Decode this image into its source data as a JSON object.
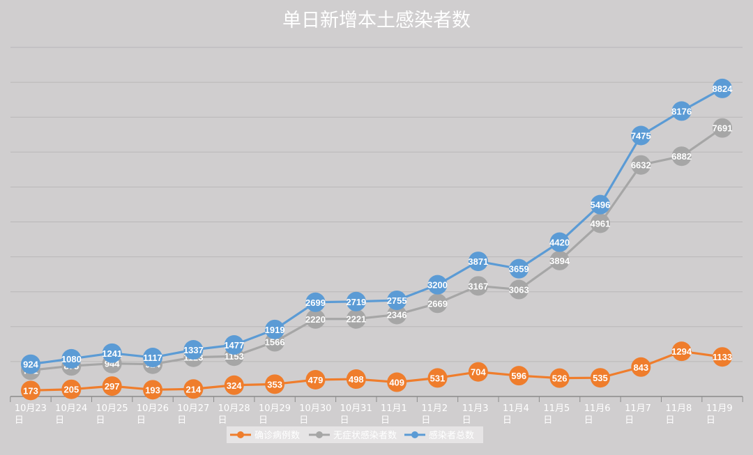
{
  "chart_data": {
    "type": "line",
    "title": "单日新增本土感染者数",
    "categories": [
      "10月23日",
      "10月24日",
      "10月25日",
      "10月26日",
      "10月27日",
      "10月28日",
      "10月29日",
      "10月30日",
      "10月31日",
      "11月1日",
      "11月2日",
      "11月3日",
      "11月4日",
      "11月5日",
      "11月6日",
      "11月7日",
      "11月8日",
      "11月9日"
    ],
    "xlabel": "",
    "ylabel": "",
    "ylim": [
      0,
      10000
    ],
    "grid": true,
    "legend": "bottom",
    "series": [
      {
        "name": "确诊病例数",
        "color": "#ef7d2c",
        "values": [
          173,
          205,
          297,
          193,
          214,
          324,
          353,
          479,
          498,
          409,
          531,
          704,
          596,
          526,
          535,
          843,
          1294,
          1133
        ]
      },
      {
        "name": "无症状感染者数",
        "color": "#a6a6a6",
        "values": [
          751,
          875,
          944,
          924,
          1123,
          1153,
          1566,
          2220,
          2221,
          2346,
          2669,
          3167,
          3063,
          3894,
          4961,
          6632,
          6882,
          7691
        ]
      },
      {
        "name": "感染者总数",
        "color": "#5b9bd5",
        "values": [
          924,
          1080,
          1241,
          1117,
          1337,
          1477,
          1919,
          2699,
          2719,
          2755,
          3200,
          3871,
          3659,
          4420,
          5496,
          7475,
          8176,
          8824
        ]
      }
    ]
  }
}
